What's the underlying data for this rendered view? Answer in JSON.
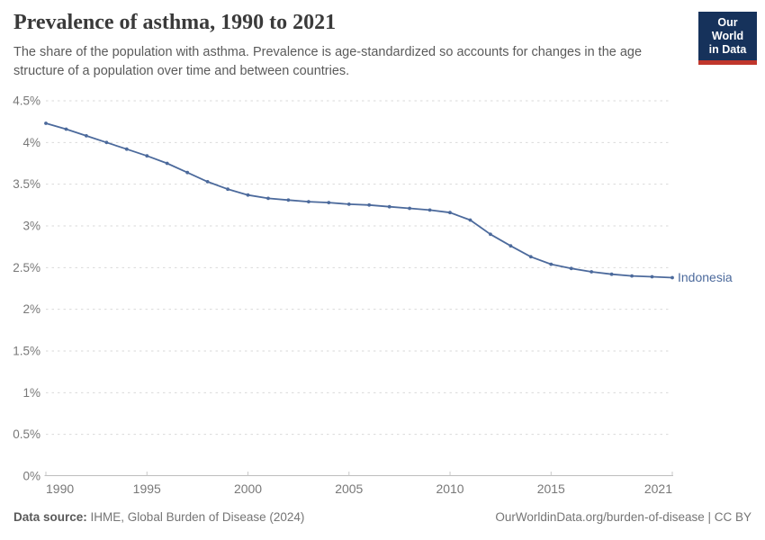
{
  "header": {
    "title": "Prevalence of asthma, 1990 to 2021",
    "subtitle": "The share of the population with asthma. Prevalence is age-standardized so accounts for changes in the age structure of a population over time and between countries.",
    "logo": {
      "line1": "Our World",
      "line2": "in Data",
      "bg_color": "#16325b",
      "stripe_color": "#c0362c"
    }
  },
  "chart_data": {
    "type": "line",
    "title": "Prevalence of asthma, 1990 to 2021",
    "xlabel": "",
    "ylabel": "",
    "unit": "%",
    "ylim": [
      0,
      4.5
    ],
    "xlim": [
      1990,
      2021
    ],
    "grid": "horizontal-dashed",
    "legend": "end-of-line-label",
    "x": [
      1990,
      1991,
      1992,
      1993,
      1994,
      1995,
      1996,
      1997,
      1998,
      1999,
      2000,
      2001,
      2002,
      2003,
      2004,
      2005,
      2006,
      2007,
      2008,
      2009,
      2010,
      2011,
      2012,
      2013,
      2014,
      2015,
      2016,
      2017,
      2018,
      2019,
      2020,
      2021
    ],
    "series": [
      {
        "name": "Indonesia",
        "color": "#4C6A9C",
        "values": [
          4.23,
          4.16,
          4.08,
          4.0,
          3.92,
          3.84,
          3.75,
          3.64,
          3.53,
          3.44,
          3.37,
          3.33,
          3.31,
          3.29,
          3.28,
          3.26,
          3.25,
          3.23,
          3.21,
          3.19,
          3.16,
          3.07,
          2.9,
          2.76,
          2.63,
          2.54,
          2.49,
          2.45,
          2.42,
          2.4,
          2.39,
          2.38
        ]
      }
    ],
    "yticks": [
      {
        "value": 0,
        "label": "0%"
      },
      {
        "value": 0.5,
        "label": "0.5%"
      },
      {
        "value": 1,
        "label": "1%"
      },
      {
        "value": 1.5,
        "label": "1.5%"
      },
      {
        "value": 2,
        "label": "2%"
      },
      {
        "value": 2.5,
        "label": "2.5%"
      },
      {
        "value": 3,
        "label": "3%"
      },
      {
        "value": 3.5,
        "label": "3.5%"
      },
      {
        "value": 4,
        "label": "4%"
      },
      {
        "value": 4.5,
        "label": "4.5%"
      }
    ],
    "xticks": [
      {
        "value": 1990,
        "label": "1990"
      },
      {
        "value": 1995,
        "label": "1995"
      },
      {
        "value": 2000,
        "label": "2000"
      },
      {
        "value": 2005,
        "label": "2005"
      },
      {
        "value": 2010,
        "label": "2010"
      },
      {
        "value": 2015,
        "label": "2015"
      },
      {
        "value": 2021,
        "label": "2021"
      }
    ],
    "colors": {
      "gridline": "#dadada",
      "axis": "#bdbdbd",
      "tick_label": "#787878"
    }
  },
  "footer": {
    "source_label": "Data source:",
    "source_text": "IHME, Global Burden of Disease (2024)",
    "credit": "OurWorldinData.org/burden-of-disease | CC BY"
  }
}
